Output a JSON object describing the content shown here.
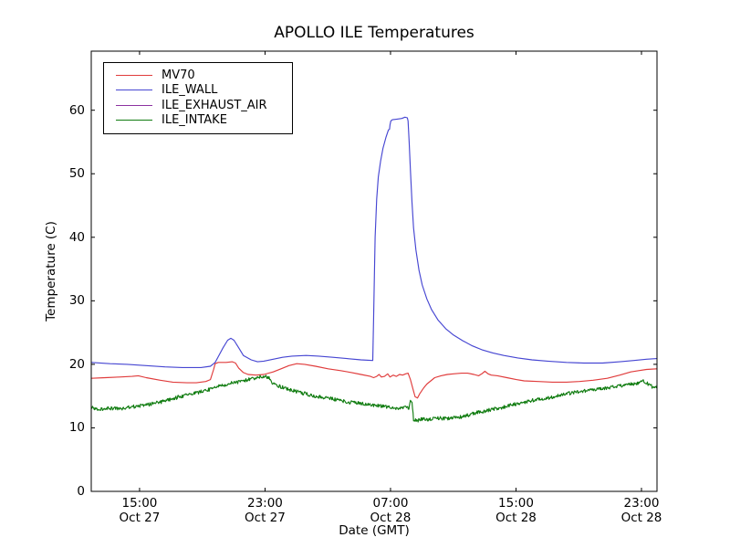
{
  "chart_data": {
    "type": "line",
    "title": "APOLLO ILE Temperatures",
    "xlabel": "Date (GMT)",
    "ylabel": "Temperature (C)",
    "x_unit": "hours_after_Oct27_12:00_GMT",
    "xlim": [
      0,
      36.07
    ],
    "ylim": [
      0,
      69.3
    ],
    "grid": false,
    "legend_position": "upper left",
    "y_ticks": [
      0,
      10,
      20,
      30,
      40,
      50,
      60
    ],
    "x_ticks": [
      {
        "t": 3.08,
        "time": "15:00",
        "date": "Oct 27"
      },
      {
        "t": 11.08,
        "time": "23:00",
        "date": "Oct 27"
      },
      {
        "t": 19.08,
        "time": "07:00",
        "date": "Oct 28"
      },
      {
        "t": 27.08,
        "time": "15:00",
        "date": "Oct 28"
      },
      {
        "t": 35.08,
        "time": "23:00",
        "date": "Oct 28"
      }
    ],
    "series": [
      {
        "name": "MV70",
        "color": "#e03c3c",
        "points": [
          [
            0,
            17.8
          ],
          [
            0.9,
            17.9
          ],
          [
            1.8,
            18
          ],
          [
            2.6,
            18.1
          ],
          [
            3,
            18.2
          ],
          [
            3.5,
            17.9
          ],
          [
            4.4,
            17.5
          ],
          [
            5.2,
            17.2
          ],
          [
            6.1,
            17.1
          ],
          [
            6.7,
            17.1
          ],
          [
            7.3,
            17.3
          ],
          [
            7.6,
            17.6
          ],
          [
            7.8,
            19.2
          ],
          [
            7.9,
            20.1
          ],
          [
            8.1,
            20.3
          ],
          [
            8.6,
            20.3
          ],
          [
            9,
            20.4
          ],
          [
            9.2,
            20.2
          ],
          [
            9.4,
            19.4
          ],
          [
            9.7,
            18.7
          ],
          [
            10,
            18.4
          ],
          [
            10.5,
            18.3
          ],
          [
            11,
            18.4
          ],
          [
            11.6,
            18.8
          ],
          [
            12.1,
            19.3
          ],
          [
            12.6,
            19.8
          ],
          [
            13.1,
            20.1
          ],
          [
            13.6,
            20
          ],
          [
            14.3,
            19.7
          ],
          [
            15.1,
            19.3
          ],
          [
            15.9,
            19
          ],
          [
            16.6,
            18.7
          ],
          [
            17.2,
            18.4
          ],
          [
            17.8,
            18.1
          ],
          [
            18,
            17.9
          ],
          [
            18.2,
            18.1
          ],
          [
            18.35,
            18.4
          ],
          [
            18.5,
            18
          ],
          [
            18.7,
            18.1
          ],
          [
            18.9,
            18.5
          ],
          [
            19.05,
            18
          ],
          [
            19.25,
            18.3
          ],
          [
            19.45,
            18.1
          ],
          [
            19.65,
            18.4
          ],
          [
            19.85,
            18.3
          ],
          [
            20.05,
            18.5
          ],
          [
            20.2,
            18.6
          ],
          [
            20.35,
            17.6
          ],
          [
            20.5,
            16.2
          ],
          [
            20.65,
            14.9
          ],
          [
            20.8,
            14.7
          ],
          [
            20.95,
            15.4
          ],
          [
            21.2,
            16.3
          ],
          [
            21.4,
            16.9
          ],
          [
            21.65,
            17.4
          ],
          [
            21.9,
            17.9
          ],
          [
            22.3,
            18.2
          ],
          [
            22.7,
            18.4
          ],
          [
            23.1,
            18.5
          ],
          [
            23.6,
            18.6
          ],
          [
            24,
            18.6
          ],
          [
            24.4,
            18.4
          ],
          [
            24.7,
            18.2
          ],
          [
            24.9,
            18.5
          ],
          [
            25.1,
            18.9
          ],
          [
            25.3,
            18.5
          ],
          [
            25.5,
            18.3
          ],
          [
            25.9,
            18.2
          ],
          [
            26.5,
            17.9
          ],
          [
            27.1,
            17.6
          ],
          [
            27.6,
            17.4
          ],
          [
            28.5,
            17.3
          ],
          [
            29.4,
            17.2
          ],
          [
            30.3,
            17.2
          ],
          [
            31.1,
            17.3
          ],
          [
            32,
            17.5
          ],
          [
            32.9,
            17.8
          ],
          [
            33.7,
            18.3
          ],
          [
            34.4,
            18.8
          ],
          [
            34.9,
            19
          ],
          [
            35.4,
            19.2
          ],
          [
            36.07,
            19.3
          ]
        ]
      },
      {
        "name": "ILE_WALL",
        "color": "#4646d2",
        "points": [
          [
            0,
            20.3
          ],
          [
            1.2,
            20.1
          ],
          [
            2.3,
            20
          ],
          [
            3.5,
            19.8
          ],
          [
            4.7,
            19.6
          ],
          [
            5.8,
            19.5
          ],
          [
            7,
            19.5
          ],
          [
            7.6,
            19.7
          ],
          [
            7.9,
            20.3
          ],
          [
            8.1,
            21.2
          ],
          [
            8.4,
            22.6
          ],
          [
            8.7,
            23.8
          ],
          [
            8.9,
            24.1
          ],
          [
            9.1,
            23.8
          ],
          [
            9.4,
            22.6
          ],
          [
            9.7,
            21.4
          ],
          [
            10.2,
            20.7
          ],
          [
            10.6,
            20.4
          ],
          [
            11,
            20.5
          ],
          [
            11.6,
            20.8
          ],
          [
            12.2,
            21.1
          ],
          [
            12.8,
            21.3
          ],
          [
            13.7,
            21.4
          ],
          [
            14.5,
            21.3
          ],
          [
            15.4,
            21.1
          ],
          [
            16.3,
            20.9
          ],
          [
            17.2,
            20.7
          ],
          [
            17.95,
            20.6
          ],
          [
            18,
            27
          ],
          [
            18.05,
            34
          ],
          [
            18.1,
            40
          ],
          [
            18.2,
            46
          ],
          [
            18.3,
            49.5
          ],
          [
            18.45,
            52
          ],
          [
            18.6,
            54
          ],
          [
            18.8,
            55.8
          ],
          [
            18.95,
            56.9
          ],
          [
            19.02,
            57
          ],
          [
            19.05,
            57.7
          ],
          [
            19.1,
            58.3
          ],
          [
            19.2,
            58.5
          ],
          [
            19.5,
            58.6
          ],
          [
            19.8,
            58.7
          ],
          [
            20,
            58.9
          ],
          [
            20.15,
            58.8
          ],
          [
            20.2,
            58.3
          ],
          [
            20.27,
            55
          ],
          [
            20.35,
            50.5
          ],
          [
            20.45,
            45.5
          ],
          [
            20.55,
            41.5
          ],
          [
            20.7,
            38
          ],
          [
            20.9,
            34.8
          ],
          [
            21.1,
            32.5
          ],
          [
            21.4,
            30.3
          ],
          [
            21.7,
            28.6
          ],
          [
            22.1,
            27
          ],
          [
            22.6,
            25.6
          ],
          [
            23.1,
            24.6
          ],
          [
            23.7,
            23.7
          ],
          [
            24.3,
            22.9
          ],
          [
            24.9,
            22.3
          ],
          [
            25.6,
            21.8
          ],
          [
            26.3,
            21.4
          ],
          [
            27.2,
            21
          ],
          [
            28.1,
            20.7
          ],
          [
            29.1,
            20.5
          ],
          [
            30.3,
            20.3
          ],
          [
            31.4,
            20.2
          ],
          [
            32.6,
            20.2
          ],
          [
            33.7,
            20.4
          ],
          [
            34.6,
            20.6
          ],
          [
            35.4,
            20.8
          ],
          [
            36.07,
            20.9
          ]
        ]
      },
      {
        "name": "ILE_EXHAUST_AIR",
        "color": "#8c32a0",
        "points": [],
        "note": "legend entry only; no separate curve visible in the plot area"
      },
      {
        "name": "ILE_INTAKE",
        "color": "#107c10",
        "noise": 0.28,
        "points": [
          [
            0,
            13.2
          ],
          [
            0.6,
            12.9
          ],
          [
            1.2,
            13.1
          ],
          [
            1.8,
            13
          ],
          [
            2.3,
            13.2
          ],
          [
            2.9,
            13.4
          ],
          [
            3.5,
            13.6
          ],
          [
            4.1,
            13.9
          ],
          [
            4.7,
            14.2
          ],
          [
            5.2,
            14.6
          ],
          [
            5.8,
            15
          ],
          [
            6.4,
            15.3
          ],
          [
            7,
            15.7
          ],
          [
            7.6,
            16.1
          ],
          [
            8.1,
            16.5
          ],
          [
            8.7,
            16.9
          ],
          [
            9.3,
            17.2
          ],
          [
            9.9,
            17.5
          ],
          [
            10.4,
            17.8
          ],
          [
            10.8,
            18
          ],
          [
            11.1,
            18.1
          ],
          [
            11.3,
            17.9
          ],
          [
            11.45,
            17.5
          ],
          [
            11.6,
            16.9
          ],
          [
            12.2,
            16.4
          ],
          [
            12.8,
            15.9
          ],
          [
            13.6,
            15.4
          ],
          [
            14.3,
            15
          ],
          [
            14.8,
            14.8
          ],
          [
            15.5,
            14.5
          ],
          [
            16.3,
            14.1
          ],
          [
            16.9,
            13.9
          ],
          [
            17.5,
            13.8
          ],
          [
            18,
            13.6
          ],
          [
            18.6,
            13.4
          ],
          [
            19.1,
            13.2
          ],
          [
            19.5,
            13
          ],
          [
            19.8,
            13.2
          ],
          [
            20.1,
            13.4
          ],
          [
            20.25,
            13.1
          ],
          [
            20.35,
            14.2
          ],
          [
            20.45,
            13.8
          ],
          [
            20.55,
            11.2
          ],
          [
            20.8,
            11.1
          ],
          [
            21,
            11.4
          ],
          [
            21.3,
            11.3
          ],
          [
            21.6,
            11.4
          ],
          [
            22.1,
            11.5
          ],
          [
            22.7,
            11.5
          ],
          [
            23.3,
            11.6
          ],
          [
            23.9,
            11.9
          ],
          [
            24.4,
            12.3
          ],
          [
            25,
            12.6
          ],
          [
            25.6,
            12.9
          ],
          [
            26.2,
            13.2
          ],
          [
            26.8,
            13.6
          ],
          [
            27.3,
            13.9
          ],
          [
            27.9,
            14.2
          ],
          [
            28.5,
            14.5
          ],
          [
            29.1,
            14.7
          ],
          [
            30,
            15.2
          ],
          [
            30.8,
            15.6
          ],
          [
            31.7,
            15.9
          ],
          [
            32.6,
            16.2
          ],
          [
            33.5,
            16.5
          ],
          [
            34.3,
            16.8
          ],
          [
            34.9,
            17.1
          ],
          [
            35.2,
            17.4
          ],
          [
            35.5,
            16.9
          ],
          [
            35.8,
            16.4
          ],
          [
            36.07,
            16.6
          ]
        ]
      }
    ]
  }
}
